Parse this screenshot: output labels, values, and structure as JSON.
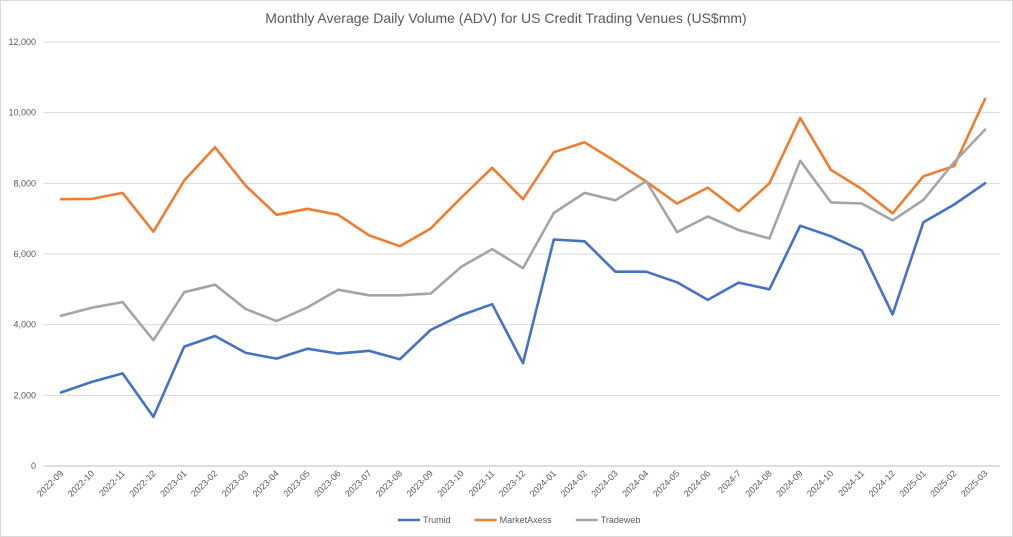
{
  "chart_data": {
    "type": "line",
    "title": "Monthly Average Daily Volume (ADV) for US Credit Trading Venues (US$mm)",
    "xlabel": "",
    "ylabel": "",
    "ylim": [
      0,
      12000
    ],
    "yticks": [
      "0",
      "2,000",
      "4,000",
      "6,000",
      "8,000",
      "10,000",
      "12,000"
    ],
    "grid": true,
    "legend_position": "bottom",
    "categories": [
      "2022-09",
      "2022-10",
      "2022-11",
      "2022-12",
      "2023-01",
      "2023-02",
      "2023-03",
      "2023-04",
      "2023-05",
      "2023-06",
      "2023-07",
      "2023-08",
      "2023-09",
      "2023-10",
      "2023-11",
      "2023-12",
      "2024-01",
      "2024-02",
      "2024-03",
      "2024-04",
      "2024-05",
      "2024-06",
      "2024-7",
      "2024-08",
      "2024-09",
      "2024-10",
      "2024-11",
      "2024-12",
      "2025-01",
      "2025-02",
      "2025-03"
    ],
    "series": [
      {
        "name": "Trumid",
        "color": "#4472c4",
        "values": [
          2080,
          2380,
          2620,
          1390,
          3380,
          3680,
          3200,
          3040,
          3320,
          3180,
          3260,
          3020,
          3850,
          4270,
          4580,
          2910,
          6410,
          6360,
          5500,
          5500,
          5200,
          4700,
          5190,
          5000,
          6800,
          6500,
          6100,
          4290,
          6900,
          7400,
          8000
        ]
      },
      {
        "name": "MarketAxess",
        "color": "#ed7d31",
        "values": [
          7550,
          7560,
          7730,
          6630,
          8080,
          9020,
          7930,
          7110,
          7280,
          7110,
          6530,
          6220,
          6720,
          7600,
          8440,
          7550,
          8880,
          9160,
          8620,
          8050,
          7430,
          7880,
          7210,
          8000,
          9850,
          8380,
          7840,
          7150,
          8200,
          8490,
          10390
        ]
      },
      {
        "name": "Tradeweb",
        "color": "#a5a5a5",
        "values": [
          4250,
          4480,
          4640,
          3560,
          4920,
          5130,
          4440,
          4100,
          4490,
          4990,
          4830,
          4830,
          4880,
          5640,
          6140,
          5600,
          7160,
          7730,
          7520,
          8060,
          6620,
          7060,
          6680,
          6440,
          8640,
          7460,
          7430,
          6950,
          7530,
          8600,
          9520
        ]
      }
    ]
  }
}
